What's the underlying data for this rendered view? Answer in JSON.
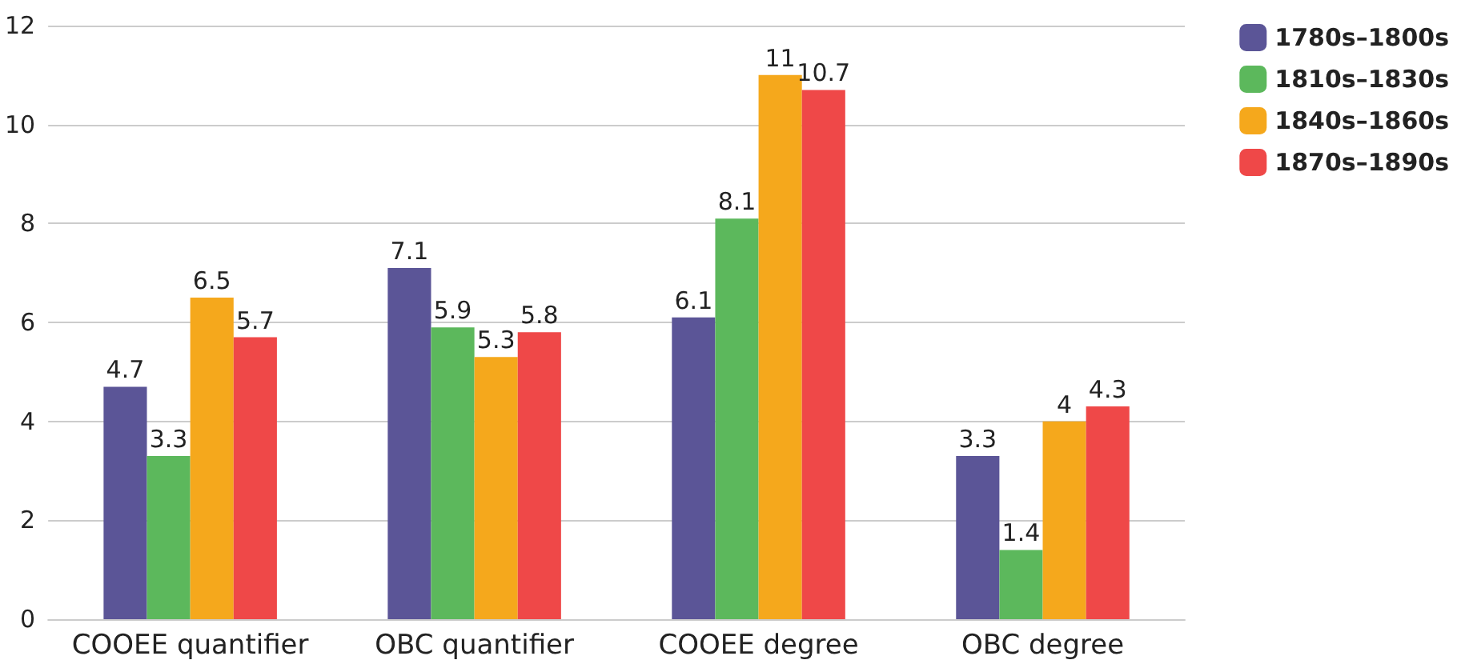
{
  "chart_data": {
    "type": "bar",
    "categories": [
      "COOEE quantifier",
      "OBC quantifier",
      "COOEE degree",
      "OBC degree"
    ],
    "series": [
      {
        "name": "1780s–1800s",
        "color": "#5b5597",
        "values": [
          4.7,
          7.1,
          6.1,
          3.3
        ]
      },
      {
        "name": "1810s–1830s",
        "color": "#5cb85c",
        "values": [
          3.3,
          5.9,
          8.1,
          1.4
        ]
      },
      {
        "name": "1840s–1860s",
        "color": "#f5a81c",
        "values": [
          6.5,
          5.3,
          11,
          4
        ]
      },
      {
        "name": "1870s–1890s",
        "color": "#ef4848",
        "values": [
          5.7,
          5.8,
          10.7,
          4.3
        ]
      }
    ],
    "ylim": [
      0,
      12
    ],
    "yticks": [
      0,
      2,
      4,
      6,
      8,
      10,
      12
    ],
    "grid": "y",
    "legend": "top right",
    "data_labels": true
  }
}
